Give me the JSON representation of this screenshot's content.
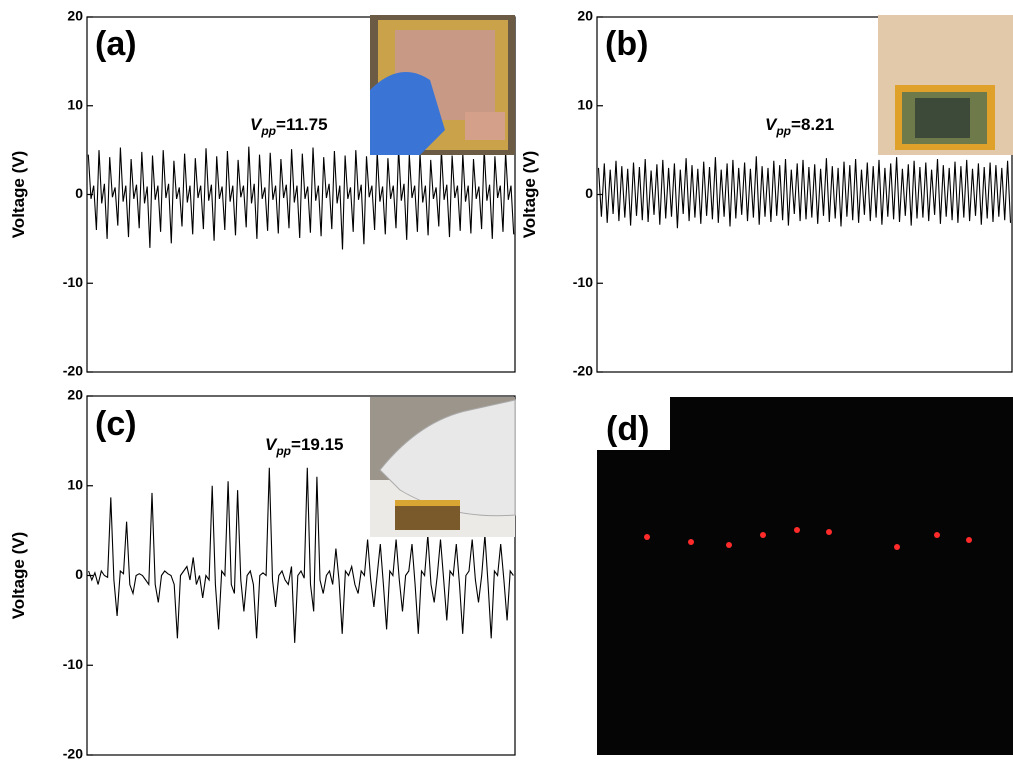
{
  "chart_data": [
    {
      "type": "line",
      "label": "(a)",
      "ylabel": "Voltage (V)",
      "ylim": [
        -20,
        20
      ],
      "yticks": [
        -20,
        -10,
        0,
        10,
        20
      ],
      "annotation": {
        "symbol": "V",
        "subscript": "pp",
        "text": "=11.75"
      },
      "color": "#000000",
      "values": [
        4.5,
        -0.5,
        1,
        -4,
        5,
        -1,
        1.2,
        -5,
        4.2,
        -0.3,
        0.8,
        -3.5,
        5.3,
        -0.8,
        1,
        -4.8,
        4,
        -0.5,
        1.1,
        -3.8,
        4.8,
        -1,
        0.9,
        -6,
        4.4,
        -0.6,
        1,
        -4.2,
        5,
        -0.4,
        1.2,
        -5.5,
        3.8,
        -0.5,
        0.8,
        -3.6,
        4.6,
        -0.9,
        1,
        -4.5,
        4.1,
        -0.4,
        1,
        -3.9,
        5.2,
        -0.7,
        1.1,
        -5.2,
        4.3,
        -0.5,
        0.9,
        -4,
        4.9,
        -0.8,
        1,
        -4.6,
        3.9,
        -0.3,
        1,
        -3.7,
        5.4,
        -1,
        1.2,
        -5,
        4.5,
        -0.5,
        0.8,
        -4.1,
        4.7,
        -0.6,
        1,
        -4.4,
        4,
        -0.4,
        1.1,
        -3.8,
        5.1,
        -0.9,
        1,
        -4.9,
        4.6,
        -0.5,
        0.9,
        -4.3,
        5.3,
        -0.7,
        1,
        -4.7,
        4.2,
        -0.4,
        1.2,
        -3.9,
        4.9,
        -1,
        1,
        -6.2,
        4.4,
        -0.5,
        0.8,
        -4.2,
        5,
        -0.6,
        1.1,
        -5.6,
        4.3,
        -0.3,
        1,
        -4,
        4.8,
        -0.8,
        0.9,
        -4.5,
        4.1,
        -0.5,
        1,
        -3.8,
        5.2,
        -0.7,
        1.2,
        -5.1,
        4.5,
        -0.4,
        1,
        -4.2,
        4.7,
        -0.9,
        1,
        -4.6,
        3.9,
        -0.5,
        0.8,
        -3.6,
        5,
        -0.6,
        1.1,
        -4.8,
        4.4,
        -0.4,
        1,
        -4.1,
        4.6,
        -0.8,
        1,
        -4.4,
        4,
        -0.5,
        0.9,
        -3.9,
        5.1,
        -0.7,
        1.1,
        -5,
        4.3,
        -0.4,
        1,
        -4.2,
        4.8,
        -0.6,
        1,
        -4.5
      ]
    },
    {
      "type": "line",
      "label": "(b)",
      "ylabel": "Voltage (V)",
      "ylim": [
        -20,
        20
      ],
      "yticks": [
        -20,
        -10,
        0,
        10,
        20
      ],
      "annotation": {
        "symbol": "V",
        "subscript": "pp",
        "text": "=8.21"
      },
      "color": "#000000",
      "values": [
        3,
        -2.5,
        3.5,
        -3.2,
        2.8,
        -2.2,
        3.8,
        -3,
        3.2,
        -2.6,
        2.9,
        -3.5,
        3.6,
        -2.4,
        3.1,
        -2.9,
        4,
        -3.1,
        2.7,
        -2.3,
        3.4,
        -3.4,
        3.9,
        -2.7,
        3,
        -2.5,
        3.5,
        -3.8,
        2.8,
        -2.2,
        4.1,
        -3,
        3.3,
        -2.6,
        2.9,
        -3.3,
        3.7,
        -2.4,
        3.1,
        -2.8,
        4.2,
        -3.2,
        2.8,
        -2.5,
        3.5,
        -3.6,
        3.9,
        -2.7,
        3,
        -2.3,
        3.6,
        -3,
        2.9,
        -2.6,
        4.3,
        -3.4,
        3.2,
        -2.5,
        3,
        -3.1,
        3.8,
        -2.4,
        3.3,
        -2.9,
        4,
        -3.5,
        2.8,
        -2.2,
        3.5,
        -3,
        3.9,
        -2.8,
        3.1,
        -2.6,
        3.4,
        -3.3,
        2.9,
        -2.4,
        4.1,
        -3.1,
        3.2,
        -2.7,
        3,
        -3.6,
        3.7,
        -2.5,
        3.3,
        -2.9,
        4,
        -3.2,
        2.8,
        -2.3,
        3.6,
        -3,
        3.2,
        -2.6,
        3.9,
        -3.4,
        3,
        -2.5,
        3.5,
        -2.8,
        4.2,
        -3.1,
        2.9,
        -2.4,
        3.4,
        -3.5,
        3.8,
        -2.7,
        3.1,
        -2.6,
        3.6,
        -3,
        2.8,
        -2.3,
        4,
        -3.3,
        3.3,
        -2.5,
        3,
        -2.9,
        3.7,
        -3.2,
        3.2,
        -2.6,
        3.9,
        -3,
        2.9,
        -2.4,
        3.5,
        -3.4,
        3.1,
        -2.7,
        3.6,
        -3.1,
        3.3,
        -2.5,
        3,
        -2.9,
        3.8,
        -3.2
      ]
    },
    {
      "type": "line",
      "label": "(c)",
      "ylabel": "Voltage (V)",
      "ylim": [
        -20,
        20
      ],
      "yticks": [
        -20,
        -10,
        0,
        10,
        20
      ],
      "annotation": {
        "symbol": "V",
        "subscript": "pp",
        "text": "=19.15"
      },
      "color": "#000000",
      "values": [
        0.5,
        -0.5,
        0.3,
        -1,
        0.5,
        0,
        -0.2,
        8.7,
        -0.5,
        -4.5,
        0.5,
        0.2,
        6,
        -1,
        -2,
        0,
        0.2,
        0,
        -0.5,
        -1,
        9.2,
        -1,
        -3,
        0,
        0.5,
        0.2,
        0,
        -1,
        -7,
        0,
        0.5,
        1,
        -0.5,
        2,
        -1,
        0,
        -2.5,
        0,
        -0.5,
        10,
        -1,
        -6,
        0.5,
        0,
        10.5,
        -1,
        -2,
        9.5,
        -0.5,
        -4,
        0,
        0.5,
        -1,
        -7,
        0,
        0.3,
        0,
        12,
        -0.5,
        -3.5,
        0,
        0.5,
        -0.5,
        -1,
        1,
        -7.5,
        0,
        0.5,
        -0.3,
        12,
        -1,
        -4,
        11,
        -0.5,
        -2,
        0,
        0.5,
        -1,
        3,
        -0.5,
        -6.5,
        0.5,
        0,
        1,
        -1,
        -2,
        0.5,
        0,
        4,
        -0.5,
        -3.5,
        0,
        3.5,
        -1,
        -6,
        0.5,
        0,
        4,
        -0.5,
        -4,
        0,
        0.5,
        3.5,
        -1,
        -6.5,
        0.5,
        0,
        4.5,
        -1,
        -3,
        0,
        4,
        -0.5,
        -5,
        0.5,
        0,
        3.5,
        -1,
        -6.5,
        0,
        0.5,
        4,
        -0.5,
        -3,
        0,
        4.5,
        -1,
        -7,
        0.5,
        0,
        3.5,
        -0.5,
        -5,
        0.5,
        0
      ]
    }
  ],
  "panel_d": {
    "label": "(d)"
  }
}
